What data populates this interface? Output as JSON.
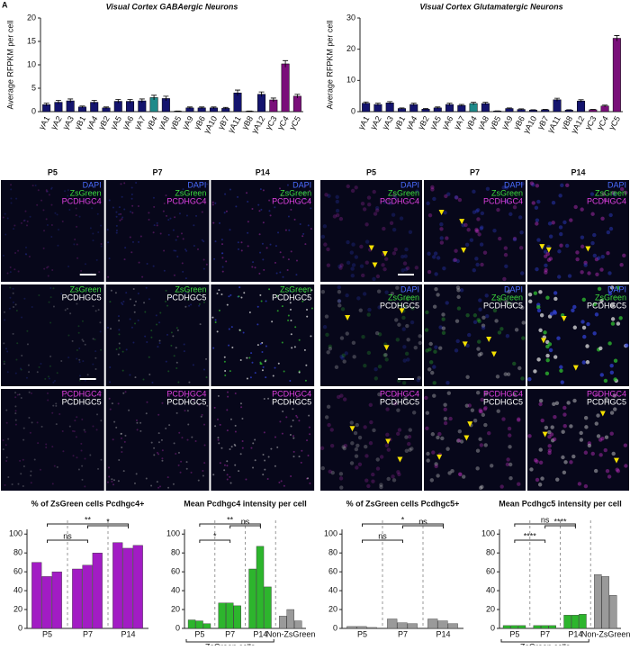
{
  "panel_label": "A",
  "chart_data": [
    {
      "type": "bar",
      "title": "Visual Cortex GABAergic Neurons",
      "y_label": "Average RFPKM per cell",
      "categories": [
        "γA1",
        "γA2",
        "γA3",
        "γB1",
        "γA4",
        "γB2",
        "γA5",
        "γA6",
        "γA7",
        "γB4",
        "γA8",
        "γB5",
        "γA9",
        "γB6",
        "γA10",
        "γB7",
        "γA11",
        "γB8",
        "γA12",
        "γC3",
        "γC4",
        "γC5"
      ],
      "values": [
        1.5,
        2,
        2.3,
        1,
        2,
        0.8,
        2.2,
        2.2,
        2.3,
        3,
        2.8,
        0.1,
        0.8,
        0.8,
        0.8,
        0.7,
        4,
        0.1,
        3.7,
        2.5,
        10.2,
        3.3
      ],
      "errors": [
        0.3,
        0.4,
        0.4,
        0.2,
        0.4,
        0.2,
        0.4,
        0.4,
        0.4,
        0.5,
        0.5,
        0.05,
        0.2,
        0.2,
        0.2,
        0.2,
        0.6,
        0.05,
        0.5,
        0.4,
        0.7,
        0.4
      ],
      "colors": [
        "#14146e",
        "#14146e",
        "#14146e",
        "#14146e",
        "#14146e",
        "#14146e",
        "#14146e",
        "#14146e",
        "#14146e",
        "#1f8a8a",
        "#14146e",
        "#14146e",
        "#14146e",
        "#14146e",
        "#14146e",
        "#14146e",
        "#14146e",
        "#14146e",
        "#14146e",
        "#7a0f7a",
        "#7a0f7a",
        "#7a0f7a"
      ],
      "ylim": [
        0,
        20
      ],
      "yticks": [
        0,
        5,
        10,
        15,
        20
      ]
    },
    {
      "type": "bar",
      "title": "Visual Cortex Glutamatergic Neurons",
      "y_label": "Average RFPKM per cell",
      "categories": [
        "γA1",
        "γA2",
        "γA3",
        "γB1",
        "γA4",
        "γB2",
        "γA5",
        "γA6",
        "γA7",
        "γB4",
        "γA8",
        "γB5",
        "γA9",
        "γB6",
        "γA10",
        "γB7",
        "γA11",
        "γB8",
        "γA12",
        "γC3",
        "γC4",
        "γC5"
      ],
      "values": [
        2.7,
        2.3,
        2.8,
        1,
        2.3,
        0.8,
        1.2,
        2.3,
        2,
        2.6,
        2.6,
        0.2,
        1,
        0.7,
        0.5,
        0.6,
        3.8,
        0.5,
        3.4,
        0.6,
        1.8,
        23.5
      ],
      "errors": [
        0.4,
        0.4,
        0.4,
        0.2,
        0.4,
        0.2,
        0.3,
        0.4,
        0.3,
        0.4,
        0.4,
        0.05,
        0.2,
        0.2,
        0.1,
        0.1,
        0.5,
        0.1,
        0.4,
        0.1,
        0.3,
        0.9
      ],
      "colors": [
        "#14146e",
        "#14146e",
        "#14146e",
        "#14146e",
        "#14146e",
        "#14146e",
        "#14146e",
        "#14146e",
        "#14146e",
        "#1f8a8a",
        "#14146e",
        "#14146e",
        "#14146e",
        "#14146e",
        "#14146e",
        "#14146e",
        "#14146e",
        "#14146e",
        "#14146e",
        "#7a0f7a",
        "#7a0f7a",
        "#7a0f7a"
      ],
      "ylim": [
        0,
        30
      ],
      "yticks": [
        0,
        10,
        20,
        30
      ]
    },
    {
      "type": "grouped",
      "title": "% of ZsGreen cells Pcdhgc4+",
      "ylim": [
        0,
        105
      ],
      "yticks": [
        0,
        20,
        40,
        60,
        80,
        100
      ],
      "groups": [
        {
          "label": "P5",
          "color": "#a21cc4",
          "values": [
            70,
            55,
            60
          ]
        },
        {
          "label": "P7",
          "color": "#a21cc4",
          "values": [
            63,
            67,
            80
          ]
        },
        {
          "label": "P14",
          "color": "#a21cc4",
          "values": [
            91,
            85,
            88
          ]
        }
      ],
      "annotations": [
        "**",
        "ns",
        "*"
      ]
    },
    {
      "type": "grouped",
      "title": "Mean Pcdhgc4 intensity per cell",
      "ylim": [
        0,
        105
      ],
      "yticks": [
        0,
        20,
        40,
        60,
        80,
        100
      ],
      "group_note": "ZsGreen cells",
      "groups": [
        {
          "label": "P5",
          "color": "#2db52d",
          "values": [
            9,
            8,
            5
          ]
        },
        {
          "label": "P7",
          "color": "#2db52d",
          "values": [
            27,
            27,
            24
          ]
        },
        {
          "label": "P14",
          "color": "#2db52d",
          "values": [
            63,
            87,
            44
          ]
        },
        {
          "label": "Non-ZsGreen",
          "color": "#9a9a9a",
          "values": [
            13,
            20,
            8
          ]
        }
      ],
      "annotations": [
        "**",
        "*",
        "ns"
      ]
    },
    {
      "type": "grouped",
      "title": "% of ZsGreen cells Pcdhgc5+",
      "ylim": [
        0,
        105
      ],
      "yticks": [
        0,
        20,
        40,
        60,
        80,
        100
      ],
      "groups": [
        {
          "label": "P5",
          "color": "#9a9a9a",
          "values": [
            2,
            2,
            1
          ]
        },
        {
          "label": "P7",
          "color": "#9a9a9a",
          "values": [
            10,
            6,
            5
          ]
        },
        {
          "label": "P14",
          "color": "#9a9a9a",
          "values": [
            10,
            8,
            5
          ]
        }
      ],
      "annotations": [
        "*",
        "ns",
        "ns"
      ]
    },
    {
      "type": "grouped",
      "title": "Mean Pcdhgc5 intensity per cell",
      "ylim": [
        0,
        105
      ],
      "yticks": [
        0,
        20,
        40,
        60,
        80,
        100
      ],
      "group_note": "ZsGreen cells",
      "groups": [
        {
          "label": "P5",
          "color": "#2db52d",
          "values": [
            3,
            3,
            3
          ]
        },
        {
          "label": "P7",
          "color": "#2db52d",
          "values": [
            3,
            3,
            3
          ]
        },
        {
          "label": "P14",
          "color": "#2db52d",
          "values": [
            14,
            14,
            15
          ]
        },
        {
          "label": "Non-ZsGreen",
          "color": "#9a9a9a",
          "values": [
            57,
            55,
            35
          ]
        }
      ],
      "annotations": [
        "ns",
        "****",
        "****"
      ]
    }
  ],
  "image_panels": [
    {
      "columns": [
        "P5",
        "P7",
        "P14"
      ],
      "rows": [
        [
          {
            "text": "DAPI",
            "color": "#4a6cff"
          },
          {
            "text": "ZsGreen",
            "color": "#3ddc3d"
          },
          {
            "text": "PCDHGC4",
            "color": "#e040e0"
          }
        ],
        [
          {
            "text": "ZsGreen",
            "color": "#3ddc3d"
          },
          {
            "text": "PCDHGC5",
            "color": "#ffffff"
          }
        ],
        [
          {
            "text": "PCDHGC4",
            "color": "#e040e0"
          },
          {
            "text": "PCDHGC5",
            "color": "#ffffff"
          }
        ]
      ]
    },
    {
      "columns": [
        "P5",
        "P7",
        "P14"
      ],
      "rows": [
        [
          {
            "text": "DAPI",
            "color": "#4a6cff"
          },
          {
            "text": "ZsGreen",
            "color": "#3ddc3d"
          },
          {
            "text": "PCDHGC4",
            "color": "#e040e0"
          }
        ],
        [
          {
            "text": "DAPI",
            "color": "#4a6cff"
          },
          {
            "text": "ZsGreen",
            "color": "#3ddc3d"
          },
          {
            "text": "PCDHGC5",
            "color": "#ffffff"
          }
        ],
        [
          {
            "text": "PCDHGC4",
            "color": "#e040e0"
          },
          {
            "text": "PCDHGC5",
            "color": "#ffffff"
          }
        ]
      ]
    }
  ]
}
